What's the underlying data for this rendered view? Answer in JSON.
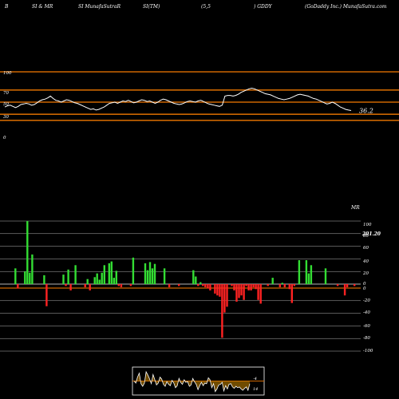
{
  "header": {
    "segments": [
      "B",
      "SI & MR",
      "SI MunafaSutraR",
      "SI(TM)",
      "(5,5",
      ") GDDY",
      "(GoDaddy Inc.) MunafaSutra.com"
    ]
  },
  "rsi_panel": {
    "ticks": [
      "100",
      "70",
      "50",
      "30",
      "0"
    ],
    "last_value_label": "36.2"
  },
  "mrsi_panel": {
    "title": "MR",
    "ticks": [
      "100",
      "80",
      "60",
      "40",
      "20",
      "0",
      "0",
      "-20",
      "-40",
      "-60",
      "-80",
      "-100"
    ],
    "value_label": "201.20"
  },
  "mini_panel": {
    "labels": [
      "-4",
      "14"
    ]
  },
  "colors": {
    "background": "#000000",
    "band_line": "#cc6600",
    "rsi_line": "#ffffff",
    "grid": "#ffffff",
    "positive_bar": "#33dd33",
    "negative_bar": "#ff2222",
    "mini_fill": "#cc8800"
  },
  "chart_data": [
    {
      "type": "line",
      "name": "RSI",
      "ylim": [
        0,
        100
      ],
      "reference_levels": [
        100,
        70,
        50,
        30,
        20
      ],
      "values": [
        42,
        44,
        45,
        43,
        41,
        43,
        46,
        47,
        48,
        47,
        45,
        46,
        49,
        52,
        54,
        55,
        57,
        60,
        56,
        53,
        52,
        50,
        52,
        54,
        53,
        51,
        49,
        48,
        46,
        44,
        42,
        40,
        38,
        39,
        37,
        38,
        40,
        42,
        45,
        48,
        49,
        50,
        48,
        50,
        52,
        51,
        53,
        51,
        49,
        50,
        52,
        54,
        53,
        51,
        52,
        50,
        48,
        50,
        53,
        55,
        54,
        52,
        50,
        48,
        47,
        46,
        47,
        49,
        51,
        52,
        51,
        50,
        52,
        53,
        51,
        49,
        47,
        46,
        45,
        44,
        43,
        45,
        60,
        61,
        61,
        60,
        61,
        63,
        66,
        68,
        70,
        72,
        73,
        72,
        70,
        68,
        66,
        64,
        63,
        62,
        60,
        58,
        56,
        55,
        54,
        55,
        56,
        58,
        60,
        62,
        63,
        62,
        61,
        60,
        58,
        56,
        55,
        53,
        51,
        49,
        47,
        48,
        50,
        48,
        45,
        42,
        40,
        38,
        37,
        36.2
      ]
    },
    {
      "type": "bar",
      "name": "MRSI",
      "ylim": [
        -100,
        100
      ],
      "values": [
        0,
        0,
        0,
        0,
        25,
        -7,
        0,
        0,
        20,
        100,
        18,
        47,
        0,
        0,
        0,
        0,
        14,
        -35,
        0,
        0,
        0,
        0,
        0,
        0,
        15,
        -3,
        23,
        -10,
        0,
        30,
        0,
        0,
        0,
        -5,
        8,
        -10,
        0,
        11,
        17,
        7,
        18,
        30,
        0,
        33,
        36,
        10,
        21,
        -3,
        -5,
        0,
        0,
        0,
        -3,
        42,
        0,
        0,
        0,
        0,
        33,
        22,
        35,
        25,
        32,
        0,
        0,
        0,
        25,
        0,
        -5,
        0,
        0,
        0,
        -3,
        0,
        0,
        0,
        0,
        0,
        22,
        12,
        -3,
        3,
        -3,
        -5,
        -7,
        -10,
        0,
        -15,
        -18,
        -20,
        -85,
        -45,
        -36,
        0,
        -3,
        -10,
        -28,
        -22,
        -18,
        -25,
        -3,
        -10,
        -10,
        -5,
        -8,
        -25,
        -31,
        0,
        0,
        -3,
        0,
        10,
        0,
        0,
        -5,
        2,
        -5,
        0,
        -8,
        -30,
        -3,
        0,
        38,
        0,
        0,
        38,
        17,
        30,
        0,
        0,
        0,
        0,
        0,
        25,
        0,
        0,
        0,
        0,
        -3,
        0,
        0,
        -18,
        -5,
        0,
        0,
        -3
      ]
    },
    {
      "type": "area",
      "name": "mini",
      "ylim": [
        -20,
        20
      ],
      "values": [
        0,
        -3,
        6,
        12,
        -4,
        -8,
        -3,
        14,
        9,
        3,
        -4,
        10,
        2,
        -6,
        -3,
        6,
        3,
        -5,
        -8,
        -1,
        -5,
        -7,
        1,
        -3,
        -10,
        -7,
        4,
        -2,
        -5,
        2,
        -2,
        -1,
        -8,
        -6,
        4,
        -1,
        -5,
        -13,
        -7,
        -2,
        -7,
        -3,
        -4,
        5,
        2,
        -10,
        -4,
        -16,
        -12,
        -6,
        -5,
        -2,
        -15,
        -7,
        -12,
        -5,
        -4,
        -9,
        -11,
        -8,
        -10,
        -9,
        -12,
        -14,
        -11,
        -9,
        -14,
        -4
      ]
    }
  ]
}
